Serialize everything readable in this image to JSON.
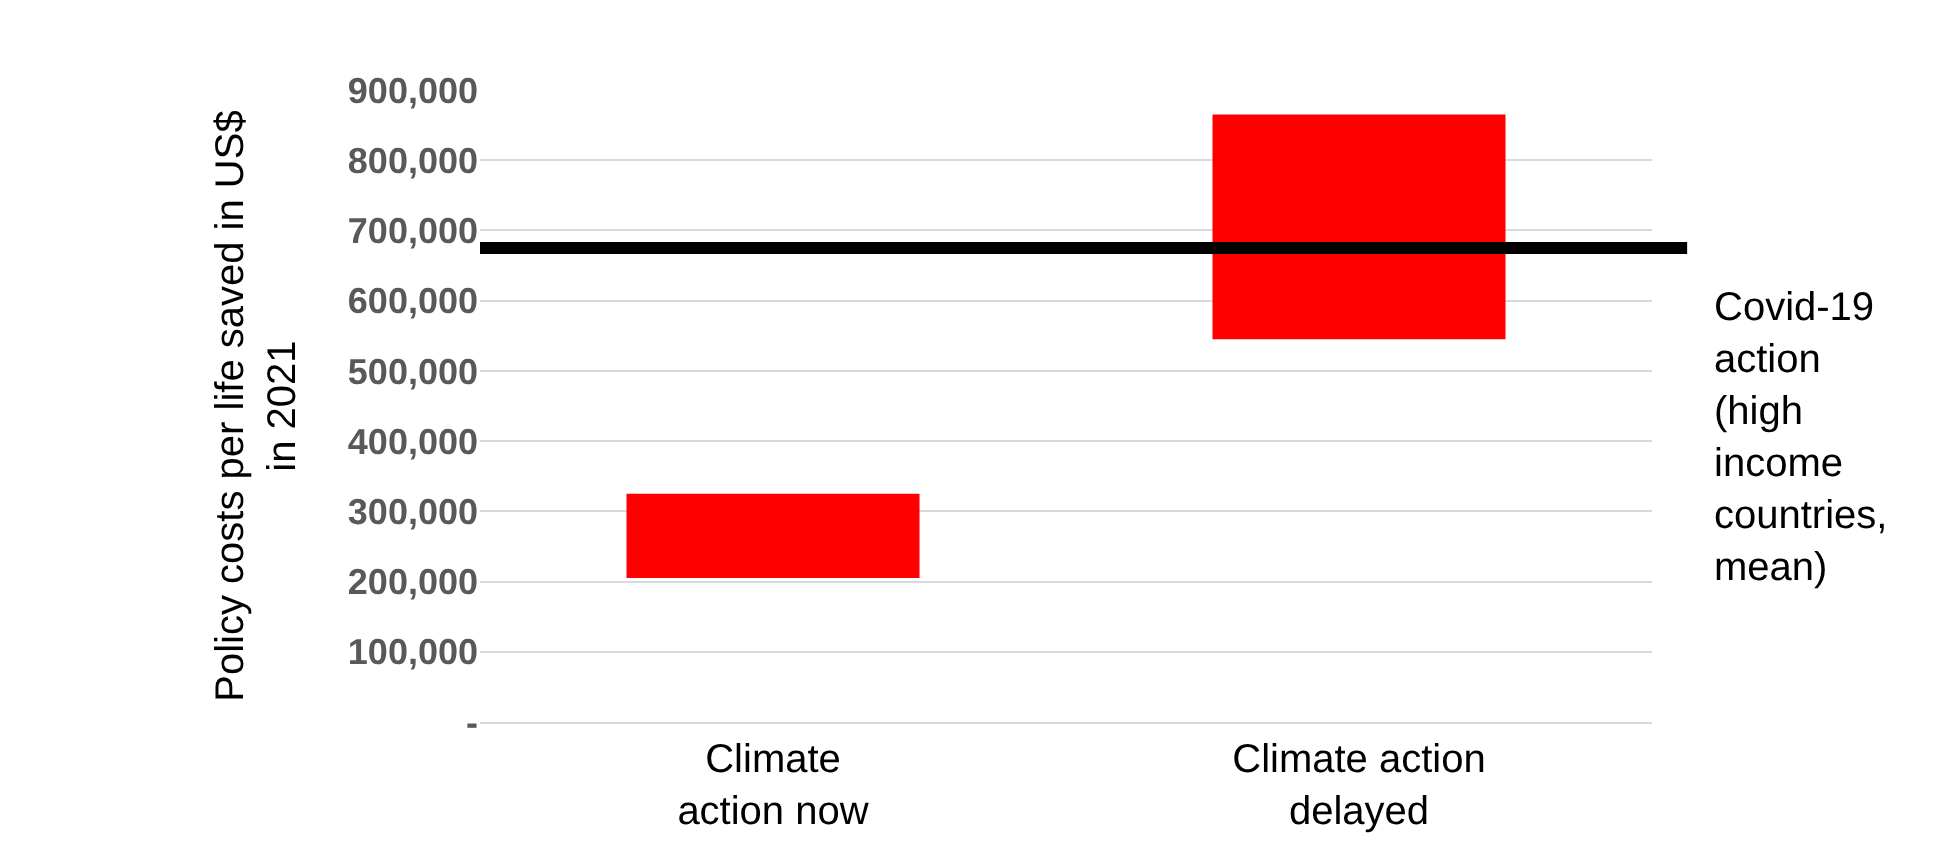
{
  "chart_data": {
    "type": "bar",
    "ylabel": "Policy costs per life saved in US$ in 2021",
    "categories": [
      "Climate action now",
      "Climate action delayed"
    ],
    "base": [
      205000,
      545000
    ],
    "values": [
      120000,
      320000
    ],
    "color": "#ff0000",
    "ylim": [
      0,
      900000
    ],
    "yticks": [
      {
        "value": 0,
        "label": "-"
      },
      {
        "value": 100000,
        "label": "100,000"
      },
      {
        "value": 200000,
        "label": "200,000"
      },
      {
        "value": 300000,
        "label": "300,000"
      },
      {
        "value": 400000,
        "label": "400,000"
      },
      {
        "value": 500000,
        "label": "500,000"
      },
      {
        "value": 600000,
        "label": "600,000"
      },
      {
        "value": 700000,
        "label": "700,000"
      },
      {
        "value": 800000,
        "label": "800,000"
      },
      {
        "value": 900000,
        "label": "900,000"
      }
    ],
    "grid": "y",
    "ref_lines": [
      {
        "axis": "y",
        "value": 675000,
        "label": "Covid-19 action (high income countries, mean)",
        "color": "#000000"
      }
    ]
  }
}
